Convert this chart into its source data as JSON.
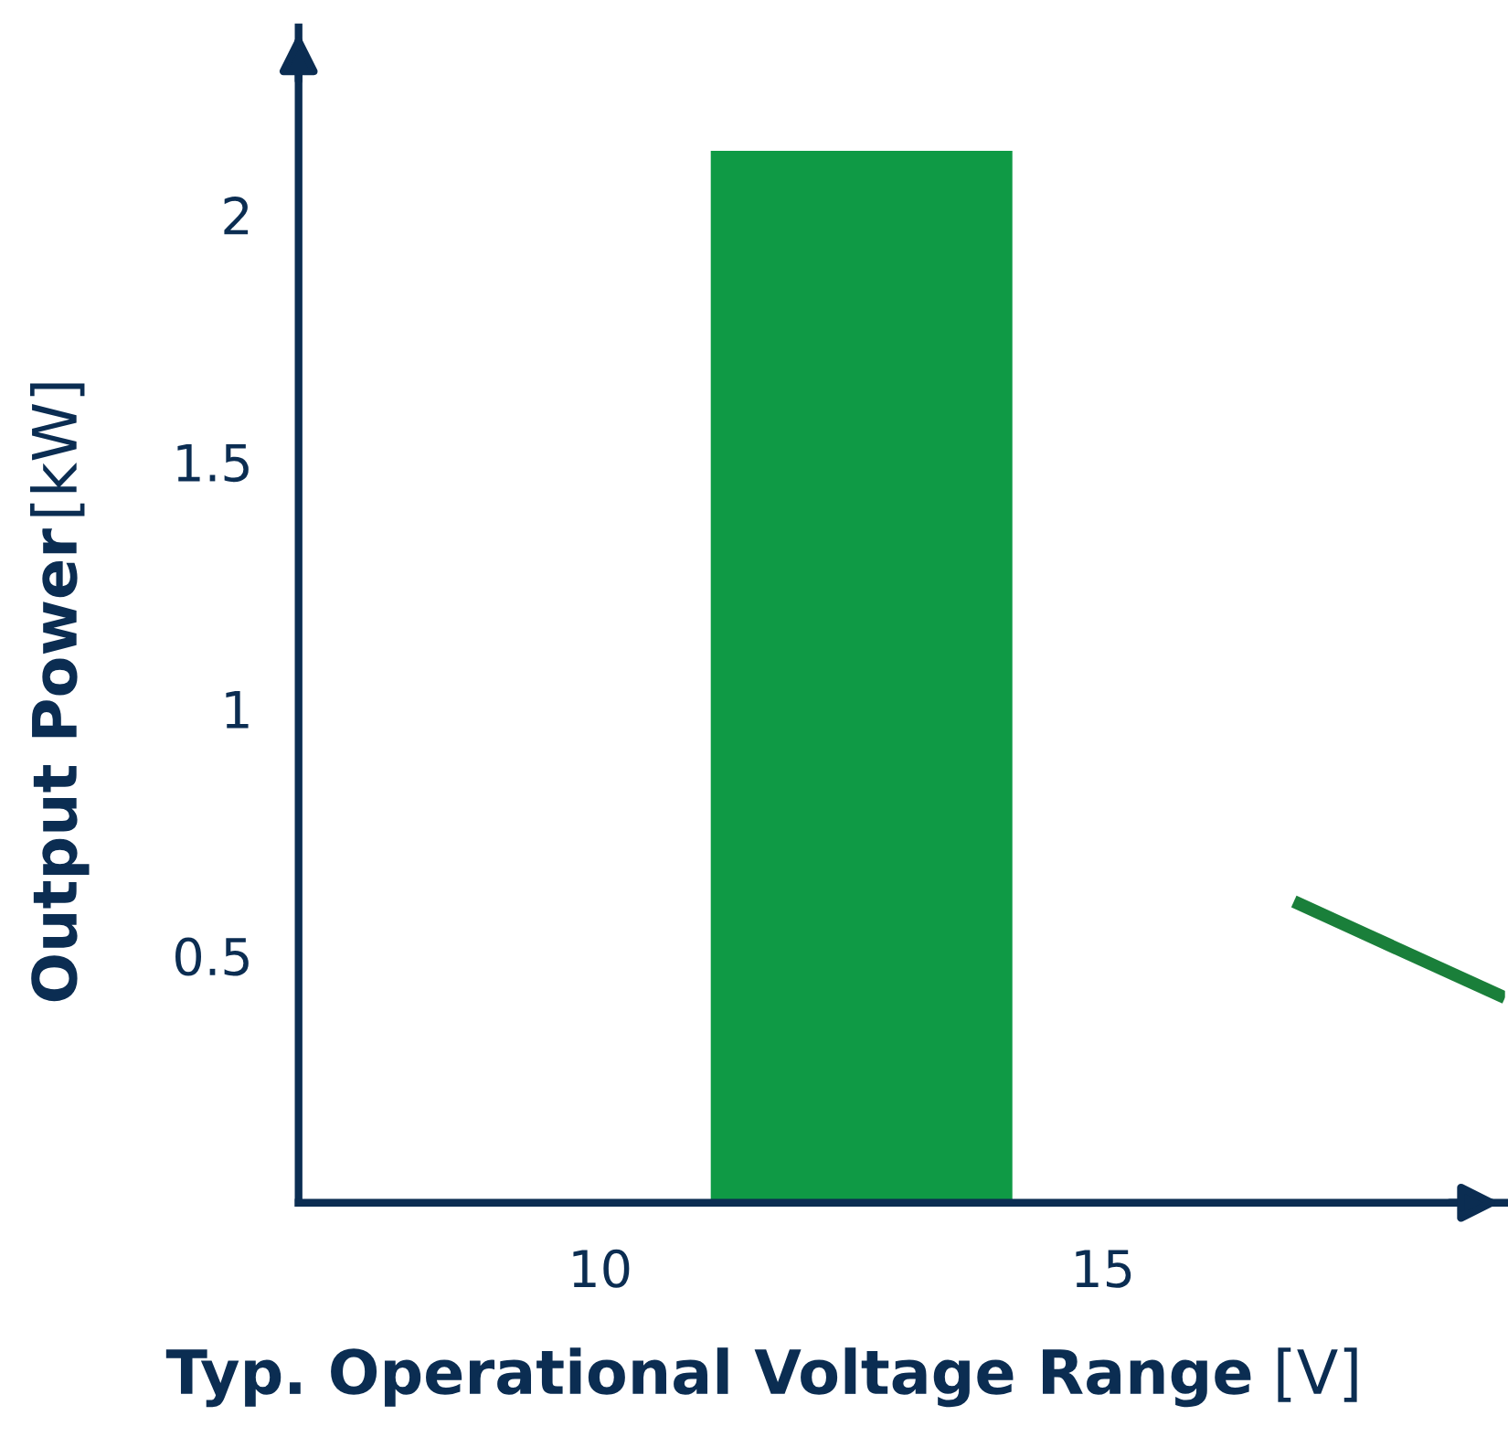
{
  "chart_data": {
    "type": "area",
    "xlabel": "Typ. Operational Voltage Range [V]",
    "ylabel": "Output Power [kW]",
    "series": [
      {
        "color": "#0f9a45",
        "x": [
          11.1,
          14.1
        ],
        "values": [
          2.13,
          2.13
        ]
      },
      {
        "type": "line",
        "color": "#1a7f3a",
        "x": [
          16.9,
          19.0
        ],
        "values": [
          0.61,
          0.415
        ]
      }
    ],
    "xlim": [
      7,
      19
    ],
    "ylim": [
      0,
      2.38
    ],
    "xticks": [
      10,
      15
    ],
    "yticks": [
      0.5,
      1,
      1.5,
      2
    ],
    "grid": false,
    "legend": false
  }
}
